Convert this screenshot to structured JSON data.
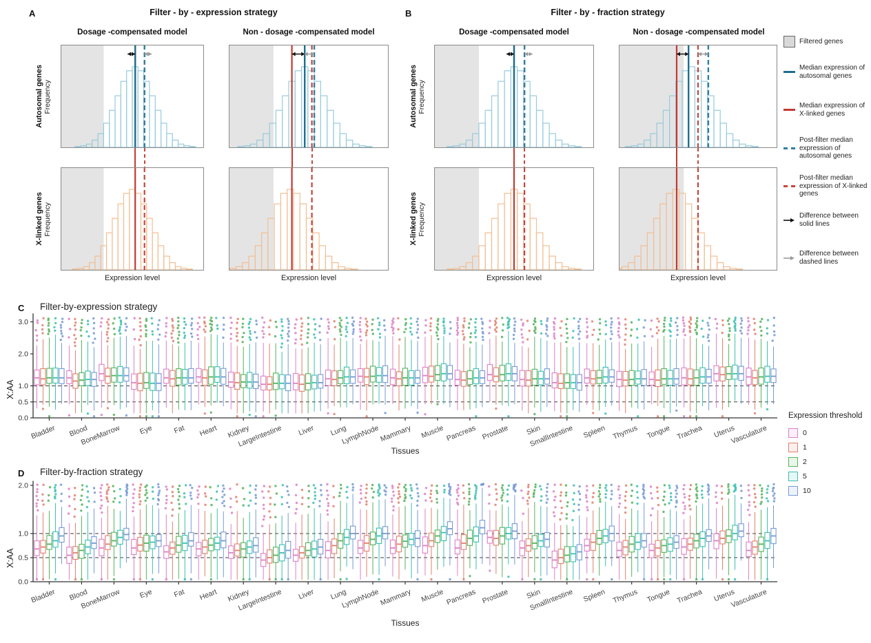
{
  "figure": {
    "panel_labels": {
      "a": "A",
      "b": "B",
      "c": "C",
      "d": "D"
    },
    "colors": {
      "hist_auto_bar": "#96CBDD",
      "hist_x_bar": "#F2BE92",
      "blue_solid": "#1D6E8E",
      "blue_dashed": "#2E7FA0",
      "red_solid": "#C13A32",
      "red_dashed": "#C5453D",
      "filtered_gray": "#E4E4E4",
      "plot_border": "#8C8C8C",
      "arrow_black": "#111111",
      "arrow_gray": "#9A9A9A",
      "ref_dash": "#3A3A3A",
      "axis": "#333333"
    },
    "top": {
      "a_title": "Filter - by - expression strategy",
      "b_title": "Filter - by - fraction strategy",
      "dc_title": "Dosage -compensated model",
      "ndc_title": "Non - dosage -compensated model",
      "row_autosomal": "Autosomal genes",
      "row_xlinked": "X-linked genes",
      "freq_label": "Frequency",
      "x_label": "Expression level",
      "bar_heights": [
        0.01,
        0.02,
        0.04,
        0.09,
        0.17,
        0.3,
        0.46,
        0.64,
        0.82,
        0.95,
        1.0,
        0.95,
        0.82,
        0.64,
        0.46,
        0.3,
        0.17,
        0.09,
        0.04,
        0.02,
        0.01
      ],
      "plots": {
        "a_dc": {
          "gray": 0.3,
          "auto_center": 0.52,
          "x_center": 0.5,
          "red": 0.52,
          "blue": 0.52,
          "red_d": 0.585,
          "blue_d": 0.585
        },
        "a_ndc": {
          "gray": 0.28,
          "auto_center": 0.475,
          "x_center": 0.385,
          "red": 0.395,
          "blue": 0.475,
          "red_d": 0.52,
          "blue_d": 0.535
        },
        "b_dc": {
          "gray": 0.28,
          "auto_center": 0.5,
          "x_center": 0.5,
          "red": 0.5,
          "blue": 0.5,
          "red_d": 0.565,
          "blue_d": 0.565
        },
        "b_ndc": {
          "gray": 0.41,
          "auto_center": 0.46,
          "x_center": 0.36,
          "red": 0.365,
          "blue": 0.44,
          "red_d": 0.5,
          "blue_d": 0.565
        }
      }
    },
    "legend": {
      "items": [
        {
          "type": "gray-box",
          "label": "Filtered genes"
        },
        {
          "type": "line-blue",
          "label": "Median expression of autosomal genes"
        },
        {
          "type": "line-red",
          "label": "Median expression of X-linked genes"
        },
        {
          "type": "dash-blue",
          "label": "Post-filter median expression of autosomal genes"
        },
        {
          "type": "dash-red",
          "label": "Post-filter median expression of X-linked genes"
        },
        {
          "type": "arrow-black",
          "label": "Difference between solid lines"
        },
        {
          "type": "arrow-gray",
          "label": "Difference between dashed lines"
        }
      ]
    },
    "threshold_legend": {
      "title": "Expression threshold",
      "items": [
        {
          "label": "0",
          "color": "#DD7FC6"
        },
        {
          "label": "1",
          "color": "#E0806C"
        },
        {
          "label": "2",
          "color": "#55B25A"
        },
        {
          "label": "5",
          "color": "#3BBFAF"
        },
        {
          "label": "10",
          "color": "#7599D6"
        }
      ]
    },
    "chart_data": [
      {
        "id": "panel_c",
        "type": "boxplot",
        "title": "Filter-by-expression strategy",
        "xlabel": "Tissues",
        "ylabel": "X:AA",
        "ylim": [
          0,
          3.2
        ],
        "yticks": [
          0.0,
          0.5,
          1.0,
          2.0,
          3.0
        ],
        "ref_lines": [
          0.5,
          1.0
        ],
        "grid": false,
        "legend_position": "right",
        "categories": [
          "Bladder",
          "Blood",
          "BoneMarrow",
          "Eye",
          "Fat",
          "Heart",
          "Kidney",
          "LargeIntestine",
          "Liver",
          "Lung",
          "LymphNode",
          "Mammary",
          "Muscle",
          "Pancreas",
          "Prostate",
          "Skin",
          "SmallIntestine",
          "Spleen",
          "Thymus",
          "Tongue",
          "Trachea",
          "Uterus",
          "Vasculature"
        ],
        "series": [
          {
            "name": "0",
            "medians": [
              1.25,
              1.25,
              1.38,
              1.1,
              1.25,
              1.28,
              1.12,
              1.05,
              1.08,
              1.22,
              1.3,
              1.25,
              1.32,
              1.2,
              1.35,
              1.2,
              1.1,
              1.25,
              1.2,
              1.2,
              1.25,
              1.38,
              1.28
            ]
          },
          {
            "name": "1",
            "medians": [
              1.22,
              1.15,
              1.3,
              1.08,
              1.22,
              1.25,
              1.1,
              1.05,
              1.05,
              1.2,
              1.28,
              1.22,
              1.3,
              1.18,
              1.3,
              1.18,
              1.08,
              1.22,
              1.18,
              1.18,
              1.22,
              1.35,
              1.25
            ]
          },
          {
            "name": "2",
            "medians": [
              1.25,
              1.18,
              1.32,
              1.1,
              1.25,
              1.28,
              1.12,
              1.08,
              1.08,
              1.25,
              1.3,
              1.25,
              1.35,
              1.22,
              1.35,
              1.22,
              1.1,
              1.25,
              1.2,
              1.22,
              1.25,
              1.38,
              1.28
            ]
          },
          {
            "name": "5",
            "medians": [
              1.25,
              1.2,
              1.32,
              1.08,
              1.25,
              1.28,
              1.12,
              1.08,
              1.1,
              1.28,
              1.32,
              1.25,
              1.38,
              1.25,
              1.38,
              1.22,
              1.1,
              1.28,
              1.22,
              1.22,
              1.28,
              1.38,
              1.3
            ]
          },
          {
            "name": "10",
            "medians": [
              1.25,
              1.2,
              1.32,
              1.08,
              1.25,
              1.28,
              1.12,
              1.08,
              1.1,
              1.28,
              1.32,
              1.25,
              1.38,
              1.25,
              1.38,
              1.22,
              1.1,
              1.28,
              1.22,
              1.22,
              1.28,
              1.38,
              1.3
            ]
          }
        ],
        "box_shape": {
          "iqr_lo": 0.16,
          "iqr_lo_var": 0.08,
          "iqr_hi": 0.22,
          "iqr_hi_var": 0.1,
          "w_dn": 0.6,
          "w_dn_var": 0.3,
          "w_up": 0.7,
          "w_up_var": 0.35,
          "clamp_lo": 0.14,
          "clamp_hi": 2.92,
          "out_max": 3.14
        }
      },
      {
        "id": "panel_d",
        "type": "boxplot",
        "title": "Filter-by-fraction strategy",
        "xlabel": "Tissues",
        "ylabel": "X:AA",
        "ylim": [
          0,
          2.05
        ],
        "yticks": [
          0.0,
          0.5,
          1.0,
          2.0
        ],
        "ref_lines": [
          0.5,
          1.0
        ],
        "grid": false,
        "legend_position": "right",
        "categories": [
          "Bladder",
          "Blood",
          "BoneMarrow",
          "Eye",
          "Fat",
          "Heart",
          "Kidney",
          "LargeIntestine",
          "Liver",
          "Lung",
          "LymphNode",
          "Mammary",
          "Muscle",
          "Pancreas",
          "Prostate",
          "Skin",
          "SmallIntestine",
          "Spleen",
          "Thymus",
          "Tongue",
          "Trachea",
          "Uterus",
          "Vasculature"
        ],
        "series": [
          {
            "name": "0",
            "medians": [
              0.68,
              0.55,
              0.7,
              0.7,
              0.62,
              0.68,
              0.6,
              0.45,
              0.55,
              0.65,
              0.7,
              0.7,
              0.75,
              0.7,
              0.92,
              0.7,
              0.45,
              0.75,
              0.65,
              0.65,
              0.72,
              0.85,
              0.65
            ]
          },
          {
            "name": "1",
            "medians": [
              0.72,
              0.6,
              0.78,
              0.76,
              0.7,
              0.72,
              0.65,
              0.5,
              0.6,
              0.75,
              0.8,
              0.78,
              0.85,
              0.8,
              0.9,
              0.75,
              0.5,
              0.82,
              0.72,
              0.7,
              0.78,
              0.9,
              0.72
            ]
          },
          {
            "name": "2",
            "medians": [
              0.78,
              0.65,
              0.85,
              0.8,
              0.76,
              0.76,
              0.68,
              0.55,
              0.65,
              0.85,
              0.88,
              0.84,
              0.95,
              0.9,
              0.95,
              0.8,
              0.55,
              0.9,
              0.78,
              0.75,
              0.85,
              0.95,
              0.78
            ]
          },
          {
            "name": "5",
            "medians": [
              0.85,
              0.72,
              0.92,
              0.82,
              0.8,
              0.8,
              0.72,
              0.6,
              0.68,
              0.92,
              0.95,
              0.88,
              1.02,
              0.95,
              1.0,
              0.85,
              0.58,
              0.95,
              0.82,
              0.78,
              0.9,
              1.0,
              0.85
            ]
          },
          {
            "name": "10",
            "medians": [
              0.95,
              0.8,
              0.98,
              0.85,
              0.85,
              0.85,
              0.75,
              0.65,
              0.72,
              1.0,
              1.0,
              0.9,
              1.1,
              1.12,
              1.05,
              0.88,
              0.62,
              1.0,
              0.85,
              0.82,
              0.95,
              1.05,
              0.95
            ]
          }
        ],
        "box_shape": {
          "iqr_lo": 0.11,
          "iqr_lo_var": 0.06,
          "iqr_hi": 0.12,
          "iqr_hi_var": 0.07,
          "w_dn": 0.45,
          "w_dn_var": 0.25,
          "w_up": 0.4,
          "w_up_var": 0.3,
          "clamp_lo": 0.04,
          "clamp_hi": 1.96,
          "out_max": 2.03
        }
      }
    ]
  }
}
